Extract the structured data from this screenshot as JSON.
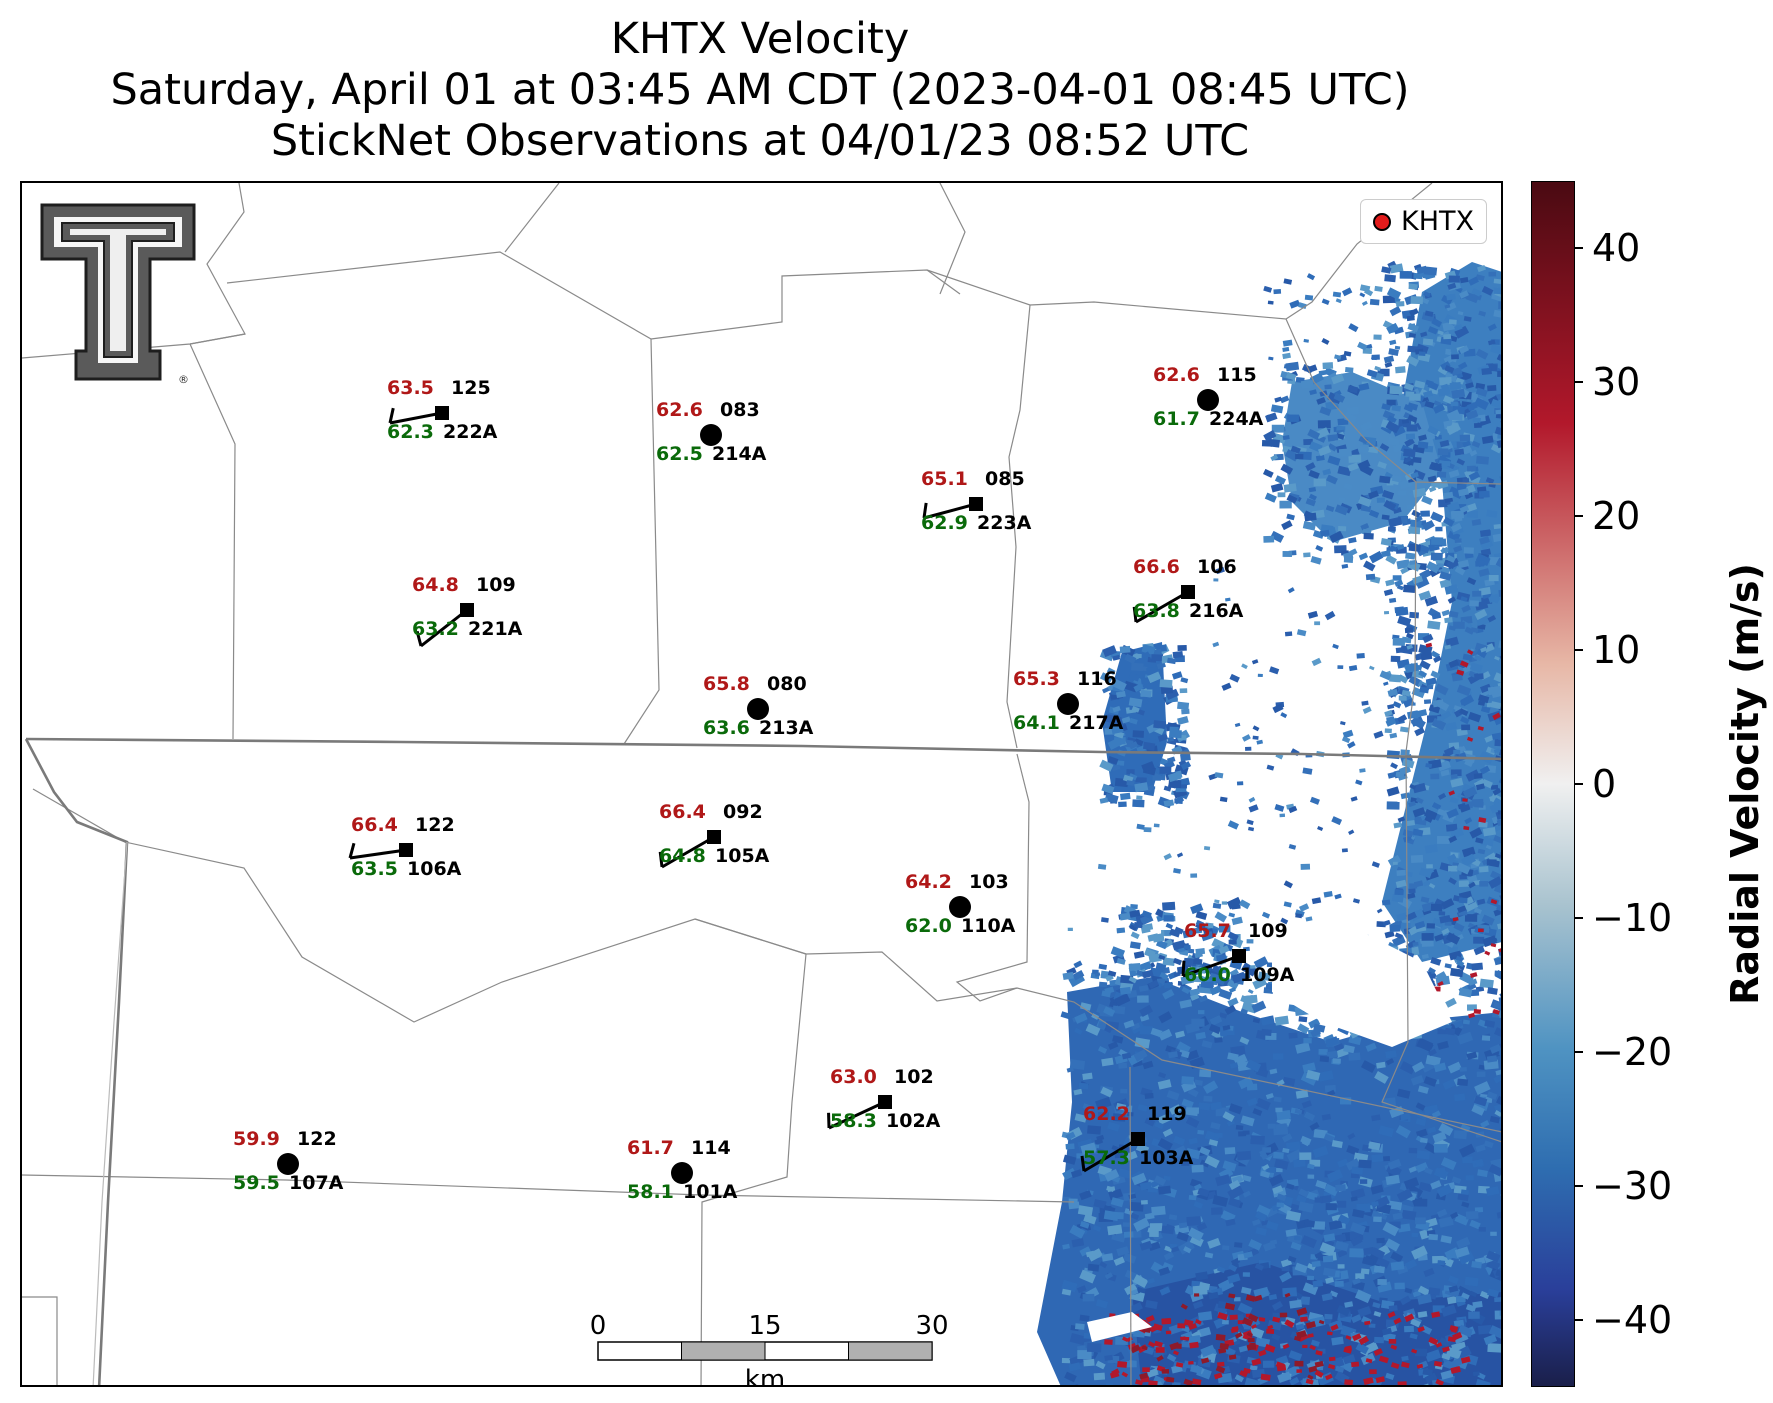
{
  "title": {
    "line1": "KHTX Velocity",
    "line2": "Saturday, April 01 at 03:45 AM CDT (2023-04-01 08:45 UTC)",
    "line3": "StickNet Observations at 04/01/23 08:52 UTC"
  },
  "logo": {
    "icon": "texas-tech-double-t-logo",
    "mark": "®"
  },
  "legend": {
    "label": "KHTX",
    "marker_color": "#e21b1b"
  },
  "scale_bar": {
    "ticks": [
      "0",
      "15",
      "30"
    ],
    "unit": "km"
  },
  "colorbar": {
    "label": "Radial Velocity (m/s)",
    "min": -45,
    "max": 45,
    "ticks": [
      "40",
      "30",
      "20",
      "10",
      "0",
      "−10",
      "−20",
      "−30",
      "−40"
    ],
    "colors": {
      "positive_max": "#4a0a12",
      "positive_mid": "#b2182b",
      "neutral": "#f0f0f0",
      "negative_mid": "#2e6db0",
      "negative_max": "#1a1f4a"
    }
  },
  "stations": [
    {
      "id": "222A",
      "temp": "63.5",
      "dew": "62.3",
      "dir": "125",
      "marker": "square"
    },
    {
      "id": "214A",
      "temp": "62.6",
      "dew": "62.5",
      "dir": "083",
      "marker": "circle"
    },
    {
      "id": "223A",
      "temp": "65.1",
      "dew": "62.9",
      "dir": "085",
      "marker": "square"
    },
    {
      "id": "224A",
      "temp": "62.6",
      "dew": "61.7",
      "dir": "115",
      "marker": "circle"
    },
    {
      "id": "221A",
      "temp": "64.8",
      "dew": "63.2",
      "dir": "109",
      "marker": "square"
    },
    {
      "id": "216A",
      "temp": "66.6",
      "dew": "63.8",
      "dir": "106",
      "marker": "square"
    },
    {
      "id": "213A",
      "temp": "65.8",
      "dew": "63.6",
      "dir": "080",
      "marker": "circle"
    },
    {
      "id": "217A",
      "temp": "65.3",
      "dew": "64.1",
      "dir": "116",
      "marker": "circle"
    },
    {
      "id": "106A",
      "temp": "66.4",
      "dew": "63.5",
      "dir": "122",
      "marker": "square"
    },
    {
      "id": "105A",
      "temp": "66.4",
      "dew": "64.8",
      "dir": "092",
      "marker": "square"
    },
    {
      "id": "110A",
      "temp": "64.2",
      "dew": "62.0",
      "dir": "103",
      "marker": "circle"
    },
    {
      "id": "109A",
      "temp": "65.7",
      "dew": "60.0",
      "dir": "109",
      "marker": "square"
    },
    {
      "id": "102A",
      "temp": "63.0",
      "dew": "58.3",
      "dir": "102",
      "marker": "square"
    },
    {
      "id": "107A",
      "temp": "59.9",
      "dew": "59.5",
      "dir": "122",
      "marker": "circle"
    },
    {
      "id": "101A",
      "temp": "61.7",
      "dew": "58.1",
      "dir": "114",
      "marker": "circle"
    },
    {
      "id": "103A",
      "temp": "62.2",
      "dew": "57.3",
      "dir": "119",
      "marker": "square"
    }
  ]
}
